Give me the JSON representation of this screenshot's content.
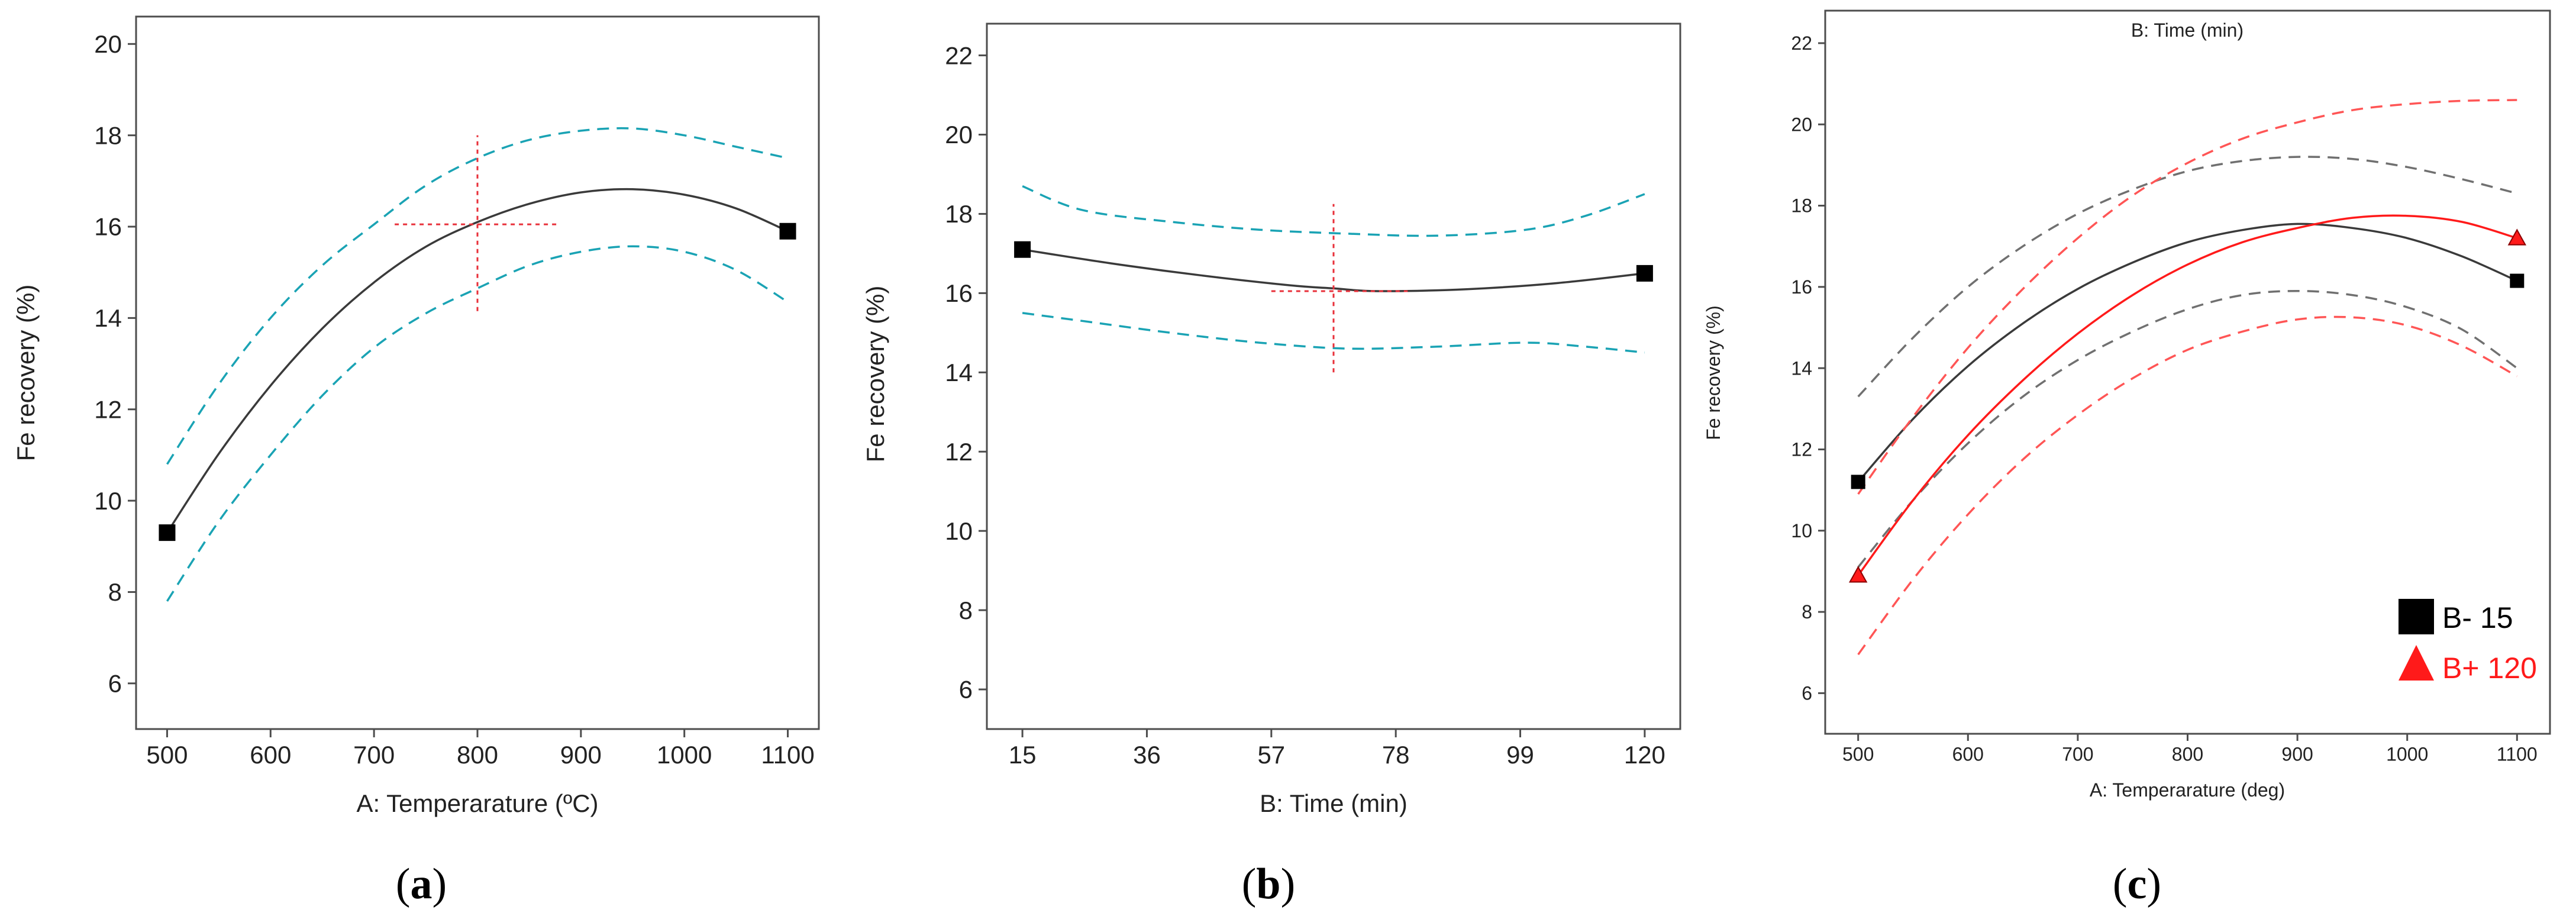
{
  "figure": {
    "panel_labels": [
      {
        "open": "(",
        "letter": "a",
        "close": ")"
      },
      {
        "open": "(",
        "letter": "b",
        "close": ")"
      },
      {
        "open": "(",
        "letter": "c",
        "close": ")"
      }
    ]
  },
  "colors": {
    "fit": "#3a3a3a",
    "ci_teal": "#1aa3b4",
    "crosshair": "#e8303a",
    "series_low": "#000000",
    "series_high": "#ff1a1a",
    "ci_low": "#707070",
    "ci_high": "#ff5555"
  },
  "chart_data": [
    {
      "type": "line",
      "title": "",
      "xlabel": "A: Temperarature (ºC)",
      "ylabel": "Fe recovery (%)",
      "xlim": [
        470,
        1130
      ],
      "ylim": [
        5,
        20.6
      ],
      "xticks": [
        500,
        600,
        700,
        800,
        900,
        1000,
        1100
      ],
      "yticks": [
        6,
        8,
        10,
        12,
        14,
        16,
        18,
        20
      ],
      "series": [
        {
          "name": "fit",
          "x": [
            500,
            550,
            600,
            650,
            700,
            750,
            800,
            850,
            900,
            950,
            1000,
            1050,
            1100
          ],
          "y": [
            9.3,
            11.03,
            12.52,
            13.77,
            14.78,
            15.56,
            16.1,
            16.5,
            16.75,
            16.82,
            16.7,
            16.4,
            15.9
          ]
        },
        {
          "name": "upper CI",
          "x": [
            500,
            550,
            600,
            650,
            700,
            750,
            800,
            850,
            900,
            950,
            1000,
            1050,
            1100
          ],
          "y": [
            10.8,
            12.55,
            14.0,
            15.15,
            16.05,
            16.9,
            17.5,
            17.9,
            18.1,
            18.15,
            18.0,
            17.75,
            17.5
          ]
        },
        {
          "name": "lower CI",
          "x": [
            500,
            550,
            600,
            650,
            700,
            750,
            800,
            850,
            900,
            950,
            1000,
            1050,
            1100
          ],
          "y": [
            7.8,
            9.55,
            11.0,
            12.3,
            13.35,
            14.1,
            14.65,
            15.15,
            15.45,
            15.57,
            15.45,
            15.05,
            14.35
          ]
        }
      ],
      "design_points": [
        {
          "x": 500,
          "y": 9.3
        },
        {
          "x": 1100,
          "y": 15.9
        }
      ],
      "crosshair": {
        "x": 800,
        "y": 16.05,
        "x_range": [
          720,
          880
        ],
        "y_range": [
          14.15,
          18.0
        ]
      }
    },
    {
      "type": "line",
      "title": "",
      "xlabel": "B: Time (min)",
      "ylabel": "Fe recovery (%)",
      "xlim": [
        9,
        126
      ],
      "ylim": [
        5,
        22.8
      ],
      "xticks": [
        15,
        36,
        57,
        78,
        99,
        120
      ],
      "yticks": [
        6,
        8,
        10,
        12,
        14,
        16,
        18,
        20,
        22
      ],
      "series": [
        {
          "name": "fit",
          "x": [
            15,
            30,
            45,
            60,
            67.5,
            75,
            90,
            105,
            120
          ],
          "y": [
            17.1,
            16.75,
            16.45,
            16.2,
            16.12,
            16.05,
            16.1,
            16.25,
            16.5
          ]
        },
        {
          "name": "upper CI",
          "x": [
            15,
            25,
            40,
            55,
            70,
            85,
            100,
            110,
            120
          ],
          "y": [
            18.7,
            18.1,
            17.8,
            17.6,
            17.5,
            17.45,
            17.6,
            17.95,
            18.5
          ]
        },
        {
          "name": "lower CI",
          "x": [
            15,
            25,
            40,
            55,
            70,
            85,
            100,
            110,
            120
          ],
          "y": [
            15.5,
            15.3,
            15.0,
            14.75,
            14.6,
            14.65,
            14.75,
            14.65,
            14.5
          ]
        }
      ],
      "design_points": [
        {
          "x": 15,
          "y": 17.1
        },
        {
          "x": 120,
          "y": 16.5
        }
      ],
      "crosshair": {
        "x": 67.5,
        "y": 16.05,
        "x_range": [
          57,
          80
        ],
        "y_range": [
          14.0,
          18.25
        ]
      }
    },
    {
      "type": "line",
      "title": "B: Time (min)",
      "xlabel": "A: Temperarature (deg)",
      "ylabel": "Fe recovery (%)",
      "xlim": [
        470,
        1130
      ],
      "ylim": [
        5,
        22.8
      ],
      "xticks": [
        500,
        600,
        700,
        800,
        900,
        1000,
        1100
      ],
      "yticks": [
        6,
        8,
        10,
        12,
        14,
        16,
        18,
        20,
        22
      ],
      "legend": [
        {
          "prefix": "B-",
          "value": "15"
        },
        {
          "prefix": "B+",
          "value": "120"
        }
      ],
      "series": [
        {
          "name": "B- 15 fit",
          "x": [
            500,
            550,
            600,
            650,
            700,
            750,
            800,
            850,
            900,
            950,
            1000,
            1050,
            1100
          ],
          "y": [
            11.2,
            12.75,
            14.05,
            15.1,
            15.95,
            16.6,
            17.1,
            17.4,
            17.55,
            17.45,
            17.2,
            16.75,
            16.15
          ]
        },
        {
          "name": "B- 15 upper CI",
          "x": [
            500,
            550,
            600,
            650,
            700,
            750,
            800,
            850,
            900,
            950,
            1000,
            1050,
            1100
          ],
          "y": [
            13.3,
            14.75,
            16.0,
            17.0,
            17.8,
            18.4,
            18.85,
            19.1,
            19.2,
            19.15,
            18.95,
            18.65,
            18.3
          ]
        },
        {
          "name": "B- 15 lower CI",
          "x": [
            500,
            550,
            600,
            650,
            700,
            750,
            800,
            850,
            900,
            950,
            1000,
            1050,
            1100
          ],
          "y": [
            9.1,
            10.75,
            12.15,
            13.3,
            14.2,
            14.9,
            15.45,
            15.8,
            15.9,
            15.8,
            15.5,
            14.95,
            14.0
          ]
        },
        {
          "name": "B+ 120 fit",
          "x": [
            500,
            550,
            600,
            650,
            700,
            750,
            800,
            850,
            900,
            950,
            1000,
            1050,
            1100
          ],
          "y": [
            8.9,
            10.75,
            12.35,
            13.7,
            14.85,
            15.8,
            16.55,
            17.1,
            17.45,
            17.7,
            17.75,
            17.6,
            17.2
          ]
        },
        {
          "name": "B+ 120 upper CI",
          "x": [
            500,
            550,
            600,
            650,
            700,
            750,
            800,
            850,
            900,
            950,
            1000,
            1050,
            1100
          ],
          "y": [
            10.9,
            12.8,
            14.5,
            15.95,
            17.2,
            18.25,
            19.05,
            19.65,
            20.05,
            20.35,
            20.5,
            20.58,
            20.6
          ]
        },
        {
          "name": "B+ 120 lower CI",
          "x": [
            500,
            550,
            600,
            650,
            700,
            750,
            800,
            850,
            900,
            950,
            1000,
            1050,
            1100
          ],
          "y": [
            6.95,
            8.8,
            10.4,
            11.75,
            12.85,
            13.75,
            14.45,
            14.9,
            15.2,
            15.25,
            15.05,
            14.55,
            13.8
          ]
        }
      ],
      "design_points": [
        {
          "series": "B- 15",
          "x": 500,
          "y": 11.2
        },
        {
          "series": "B- 15",
          "x": 1100,
          "y": 16.15
        },
        {
          "series": "B+ 120",
          "x": 500,
          "y": 8.9
        },
        {
          "series": "B+ 120",
          "x": 1100,
          "y": 17.2
        }
      ]
    }
  ]
}
